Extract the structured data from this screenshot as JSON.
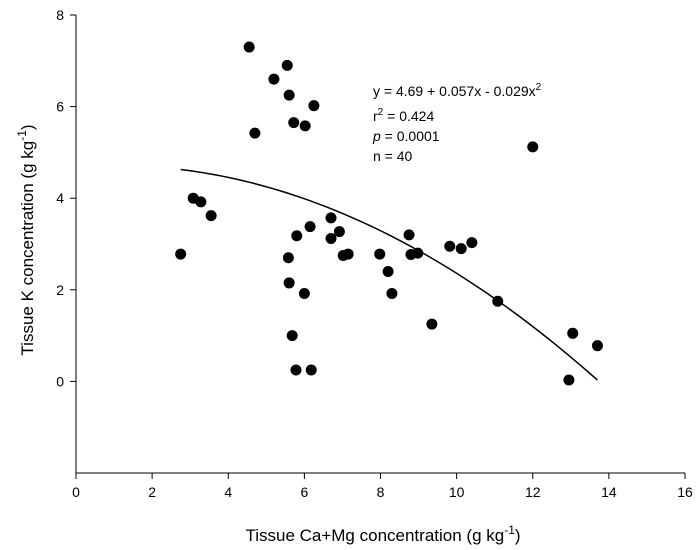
{
  "chart_data": {
    "type": "scatter",
    "title": "",
    "xlabel": {
      "main": "Tissue Ca+Mg concentration (g kg",
      "sup": "-1",
      "close": ")"
    },
    "ylabel": {
      "main": "Tissue K concentration (g kg",
      "sup": "-1",
      "close": ")"
    },
    "xlim": [
      0,
      16
    ],
    "ylim": [
      -2,
      8
    ],
    "xticks": [
      0,
      2,
      4,
      6,
      8,
      10,
      12,
      14,
      16
    ],
    "yticks": [
      0,
      2,
      4,
      6,
      8
    ],
    "grid": false,
    "legend": "none",
    "series": [
      {
        "points": [
          [
            2.75,
            2.78
          ],
          [
            3.08,
            4.0
          ],
          [
            3.28,
            3.92
          ],
          [
            3.55,
            3.62
          ],
          [
            4.55,
            7.3
          ],
          [
            4.7,
            5.42
          ],
          [
            5.2,
            6.6
          ],
          [
            5.55,
            6.9
          ],
          [
            5.6,
            6.25
          ],
          [
            5.72,
            5.65
          ],
          [
            6.02,
            5.58
          ],
          [
            6.25,
            6.02
          ],
          [
            5.58,
            2.7
          ],
          [
            5.6,
            2.15
          ],
          [
            5.68,
            1.0
          ],
          [
            5.8,
            3.18
          ],
          [
            5.78,
            0.25
          ],
          [
            6.0,
            1.92
          ],
          [
            6.15,
            3.38
          ],
          [
            6.18,
            0.25
          ],
          [
            6.7,
            3.57
          ],
          [
            6.7,
            3.12
          ],
          [
            6.92,
            3.27
          ],
          [
            7.02,
            2.75
          ],
          [
            7.15,
            2.78
          ],
          [
            7.98,
            2.78
          ],
          [
            8.2,
            2.4
          ],
          [
            8.3,
            1.92
          ],
          [
            8.75,
            3.2
          ],
          [
            8.8,
            2.77
          ],
          [
            8.98,
            2.8
          ],
          [
            9.35,
            1.25
          ],
          [
            9.82,
            2.95
          ],
          [
            10.12,
            2.9
          ],
          [
            10.4,
            3.03
          ],
          [
            11.08,
            1.75
          ],
          [
            12.0,
            5.12
          ],
          [
            12.95,
            0.03
          ],
          [
            13.05,
            1.05
          ],
          [
            13.7,
            0.78
          ]
        ],
        "color": "#000000"
      }
    ],
    "fit": {
      "model": "quadratic",
      "coefficients": [
        4.69,
        0.057,
        -0.029
      ],
      "x_range": [
        2.75,
        13.7
      ],
      "color": "#000000"
    },
    "annotations": {
      "equation": {
        "main": "y = 4.69 + 0.057x - 0.029x",
        "sup": "2"
      },
      "r2": {
        "r": "r",
        "sup": "2",
        "rest": " = 0.424"
      },
      "p": {
        "p": "p",
        "rest": " = 0.0001"
      },
      "n": "n = 40"
    }
  }
}
